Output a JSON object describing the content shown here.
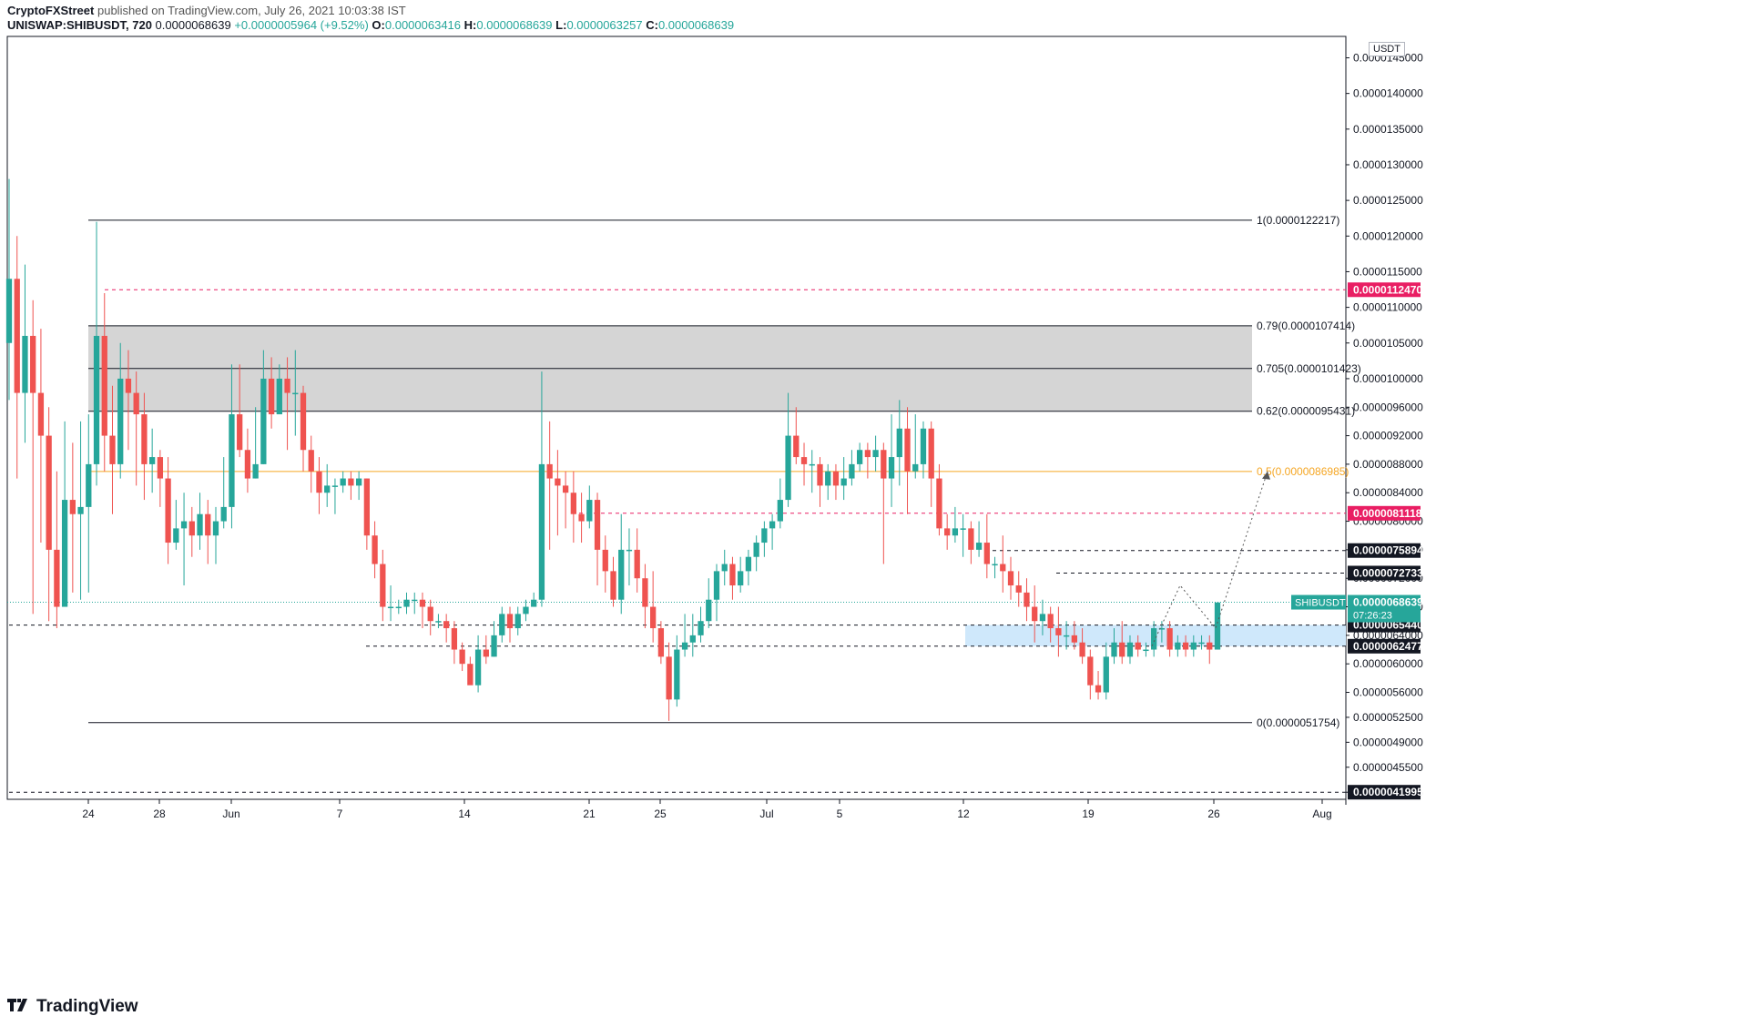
{
  "header": {
    "publisher": "CryptoFXStreet",
    "published_text": "published on TradingView.com, July 26, 2021 10:03:38 IST",
    "symbol": "UNISWAP:SHIBUSDT, 720",
    "last": "0.0000068639",
    "change": "+0.0000005964 (+9.52%)",
    "o_label": "O:",
    "o": "0.0000063416",
    "h_label": "H:",
    "h": "0.0000068639",
    "l_label": "L:",
    "l": "0.0000063257",
    "c_label": "C:",
    "c": "0.0000068639"
  },
  "footer": {
    "brand": "TradingView",
    "logo_icon": "tradingview-logo-icon"
  },
  "colors": {
    "up": "#26a69a",
    "down": "#ef5350",
    "red_line": "#e91e63",
    "orange_line": "#f5a623",
    "zone_gray": "#d3d3d3",
    "zone_blue": "#cfe8fb"
  },
  "chart_data": {
    "type": "candlestick",
    "currency": "USDT",
    "x_ticks": [
      "24",
      "28",
      "Jun",
      "7",
      "14",
      "21",
      "25",
      "Jul",
      "5",
      "12",
      "19",
      "26",
      "Aug"
    ],
    "y_ticks": [
      "0.0000145000",
      "0.0000140000",
      "0.0000135000",
      "0.0000130000",
      "0.0000125000",
      "0.0000120000",
      "0.0000115000",
      "0.0000110000",
      "0.0000105000",
      "0.0000100000",
      "0.0000096000",
      "0.0000092000",
      "0.0000088000",
      "0.0000084000",
      "0.0000080000",
      "0.0000076000",
      "0.0000072000",
      "0.0000068000",
      "0.0000064000",
      "0.0000060000",
      "0.0000056000",
      "0.0000052500",
      "0.0000049000",
      "0.0000045500",
      "0.0000041995"
    ],
    "ylim": [
      4.1e-06,
      1.48e-05
    ],
    "fib_levels": [
      {
        "label": "1(0.0000122217)",
        "value": 1.22217e-05
      },
      {
        "label": "0.79(0.0000107414)",
        "value": 1.07414e-05
      },
      {
        "label": "0.705(0.0000101423)",
        "value": 1.01423e-05
      },
      {
        "label": "0.62(0.0000095431)",
        "value": 9.5431e-06
      },
      {
        "label": "0.5(0.0000086985)",
        "value": 8.6985e-06
      },
      {
        "label": "0(0.0000051754)",
        "value": 5.1754e-06
      }
    ],
    "price_labels": [
      {
        "text": "0.0000112470",
        "value": 1.1247e-05,
        "style": "red"
      },
      {
        "text": "0.0000081118",
        "value": 8.1118e-06,
        "style": "red"
      },
      {
        "text": "0.0000075894",
        "value": 7.5894e-06,
        "style": "black"
      },
      {
        "text": "0.0000072733",
        "value": 7.2733e-06,
        "style": "black"
      },
      {
        "text": "0.0000065440",
        "value": 6.544e-06,
        "style": "black"
      },
      {
        "text": "0.0000062477",
        "value": 6.2477e-06,
        "style": "black"
      },
      {
        "text": "0.0000041995",
        "value": 4.1995e-06,
        "style": "black"
      }
    ],
    "last_price": {
      "symbol": "SHIBUSDT",
      "text": "0.0000068639",
      "countdown": "07:26:23",
      "value": 6.8639e-06
    },
    "candles": [
      [
        10.5,
        11.4,
        12.8,
        9.7
      ],
      [
        11.4,
        9.8,
        12.0,
        8.6
      ],
      [
        9.8,
        10.6,
        11.6,
        9.1
      ],
      [
        10.6,
        9.8,
        11.1,
        6.7
      ],
      [
        9.8,
        9.2,
        10.7,
        7.7
      ],
      [
        9.2,
        7.6,
        9.6,
        6.6
      ],
      [
        7.6,
        6.8,
        8.7,
        6.5
      ],
      [
        6.8,
        8.3,
        9.4,
        6.8
      ],
      [
        8.3,
        8.1,
        9.1,
        7.0
      ],
      [
        8.1,
        8.2,
        9.4,
        6.9
      ],
      [
        8.2,
        8.8,
        9.5,
        7.0
      ],
      [
        8.8,
        10.6,
        12.2,
        8.5
      ],
      [
        10.6,
        9.2,
        11.2,
        8.7
      ],
      [
        9.2,
        8.8,
        9.9,
        8.1
      ],
      [
        8.8,
        10.0,
        10.5,
        8.6
      ],
      [
        10.0,
        9.8,
        10.4,
        9.0
      ],
      [
        9.8,
        9.5,
        10.1,
        8.5
      ],
      [
        9.5,
        8.8,
        9.8,
        8.3
      ],
      [
        8.8,
        8.9,
        9.3,
        8.4
      ],
      [
        8.9,
        8.6,
        9.0,
        8.2
      ],
      [
        8.6,
        7.7,
        8.9,
        7.4
      ],
      [
        7.7,
        7.9,
        8.3,
        7.6
      ],
      [
        7.9,
        8.0,
        8.4,
        7.1
      ],
      [
        8.0,
        7.8,
        8.2,
        7.5
      ],
      [
        7.8,
        8.1,
        8.4,
        7.6
      ],
      [
        8.1,
        7.8,
        8.3,
        7.4
      ],
      [
        7.8,
        8.0,
        8.2,
        7.4
      ],
      [
        8.0,
        8.2,
        8.9,
        7.9
      ],
      [
        8.2,
        9.5,
        10.2,
        7.9
      ],
      [
        9.5,
        9.0,
        10.2,
        8.9
      ],
      [
        9.0,
        8.6,
        9.3,
        8.4
      ],
      [
        8.6,
        8.8,
        9.6,
        8.6
      ],
      [
        8.8,
        10.0,
        10.4,
        8.8
      ],
      [
        10.0,
        9.5,
        10.3,
        9.3
      ],
      [
        9.5,
        10.0,
        10.2,
        9.6
      ],
      [
        10.0,
        9.8,
        10.3,
        9.0
      ],
      [
        9.8,
        9.8,
        10.4,
        9.2
      ],
      [
        9.8,
        9.0,
        9.9,
        8.7
      ],
      [
        9.0,
        8.7,
        9.2,
        8.4
      ],
      [
        8.7,
        8.4,
        8.9,
        8.1
      ],
      [
        8.4,
        8.5,
        8.8,
        8.2
      ],
      [
        8.5,
        8.5,
        8.6,
        8.1
      ],
      [
        8.5,
        8.6,
        8.7,
        8.4
      ],
      [
        8.6,
        8.5,
        8.7,
        8.3
      ],
      [
        8.5,
        8.6,
        8.7,
        8.3
      ],
      [
        8.6,
        7.8,
        8.6,
        7.6
      ],
      [
        7.8,
        7.4,
        8.0,
        7.2
      ],
      [
        7.4,
        6.8,
        7.6,
        6.6
      ],
      [
        6.8,
        6.8,
        7.1,
        6.6
      ],
      [
        6.8,
        6.8,
        6.9,
        6.7
      ],
      [
        6.8,
        6.9,
        7.0,
        6.7
      ],
      [
        6.9,
        6.9,
        7.0,
        6.7
      ],
      [
        6.9,
        6.8,
        7.0,
        6.5
      ],
      [
        6.8,
        6.6,
        6.9,
        6.4
      ],
      [
        6.6,
        6.6,
        6.7,
        6.5
      ],
      [
        6.6,
        6.5,
        6.7,
        6.3
      ],
      [
        6.5,
        6.2,
        6.6,
        6.0
      ],
      [
        6.2,
        6.0,
        6.3,
        5.9
      ],
      [
        6.0,
        5.7,
        6.1,
        5.8
      ],
      [
        5.7,
        6.2,
        6.4,
        5.6
      ],
      [
        6.2,
        6.1,
        6.4,
        6.0
      ],
      [
        6.1,
        6.4,
        6.6,
        6.1
      ],
      [
        6.4,
        6.7,
        6.8,
        6.3
      ],
      [
        6.7,
        6.5,
        6.8,
        6.3
      ],
      [
        6.5,
        6.7,
        6.8,
        6.4
      ],
      [
        6.7,
        6.8,
        6.9,
        6.6
      ],
      [
        6.8,
        6.9,
        7.0,
        6.8
      ],
      [
        6.9,
        8.8,
        10.1,
        6.8
      ],
      [
        8.8,
        8.6,
        9.4,
        7.6
      ],
      [
        8.6,
        8.5,
        9.0,
        7.8
      ],
      [
        8.5,
        8.4,
        8.7,
        7.9
      ],
      [
        8.4,
        8.1,
        8.7,
        7.7
      ],
      [
        8.1,
        8.0,
        8.4,
        7.7
      ],
      [
        8.0,
        8.3,
        8.5,
        7.9
      ],
      [
        8.3,
        7.6,
        8.4,
        7.1
      ],
      [
        7.6,
        7.3,
        7.8,
        7.0
      ],
      [
        7.3,
        6.9,
        7.5,
        6.8
      ],
      [
        6.9,
        7.6,
        8.1,
        6.7
      ],
      [
        7.6,
        7.6,
        7.9,
        7.1
      ],
      [
        7.6,
        7.2,
        7.9,
        7.0
      ],
      [
        7.2,
        6.8,
        7.4,
        6.5
      ],
      [
        6.8,
        6.5,
        7.3,
        6.3
      ],
      [
        6.5,
        6.1,
        6.6,
        6.0
      ],
      [
        6.1,
        5.5,
        6.3,
        5.2
      ],
      [
        5.5,
        6.2,
        6.4,
        5.4
      ],
      [
        6.2,
        6.3,
        6.7,
        6.1
      ],
      [
        6.3,
        6.4,
        6.7,
        6.1
      ],
      [
        6.4,
        6.6,
        6.8,
        6.3
      ],
      [
        6.6,
        6.9,
        7.2,
        6.5
      ],
      [
        6.9,
        7.3,
        7.4,
        6.6
      ],
      [
        7.3,
        7.4,
        7.6,
        7.1
      ],
      [
        7.4,
        7.1,
        7.5,
        6.9
      ],
      [
        7.1,
        7.3,
        7.5,
        7.0
      ],
      [
        7.3,
        7.5,
        7.6,
        7.1
      ],
      [
        7.5,
        7.7,
        7.8,
        7.3
      ],
      [
        7.7,
        7.9,
        8.0,
        7.5
      ],
      [
        7.9,
        8.0,
        8.1,
        7.6
      ],
      [
        8.0,
        8.3,
        8.6,
        7.9
      ],
      [
        8.3,
        9.2,
        9.8,
        8.2
      ],
      [
        9.2,
        8.9,
        9.6,
        8.8
      ],
      [
        8.9,
        8.8,
        9.1,
        8.5
      ],
      [
        8.8,
        8.8,
        9.0,
        8.4
      ],
      [
        8.8,
        8.5,
        8.9,
        8.2
      ],
      [
        8.5,
        8.7,
        8.8,
        8.3
      ],
      [
        8.7,
        8.5,
        8.8,
        8.3
      ],
      [
        8.5,
        8.6,
        8.9,
        8.3
      ],
      [
        8.6,
        8.8,
        9.0,
        8.5
      ],
      [
        8.8,
        9.0,
        9.1,
        8.7
      ],
      [
        9.0,
        8.9,
        9.1,
        8.6
      ],
      [
        8.9,
        9.0,
        9.2,
        8.7
      ],
      [
        9.0,
        8.6,
        9.1,
        7.4
      ],
      [
        8.6,
        8.9,
        9.5,
        8.2
      ],
      [
        8.9,
        9.3,
        9.7,
        8.5
      ],
      [
        9.3,
        8.7,
        9.6,
        8.1
      ],
      [
        8.7,
        8.8,
        9.5,
        8.6
      ],
      [
        8.8,
        9.3,
        9.4,
        8.6
      ],
      [
        9.3,
        8.6,
        9.4,
        8.2
      ],
      [
        8.6,
        7.9,
        8.8,
        7.8
      ],
      [
        7.9,
        7.8,
        8.1,
        7.6
      ],
      [
        7.8,
        7.9,
        8.2,
        7.7
      ],
      [
        7.9,
        7.9,
        8.1,
        7.5
      ],
      [
        7.9,
        7.6,
        8.0,
        7.4
      ],
      [
        7.6,
        7.7,
        8.0,
        7.5
      ],
      [
        7.7,
        7.4,
        8.1,
        7.2
      ],
      [
        7.4,
        7.4,
        7.5,
        7.2
      ],
      [
        7.4,
        7.3,
        7.8,
        7.0
      ],
      [
        7.3,
        7.1,
        7.5,
        6.9
      ],
      [
        7.1,
        7.0,
        7.3,
        6.8
      ],
      [
        7.0,
        6.8,
        7.2,
        6.6
      ],
      [
        6.8,
        6.6,
        7.1,
        6.3
      ],
      [
        6.6,
        6.7,
        6.9,
        6.4
      ],
      [
        6.7,
        6.5,
        6.8,
        6.3
      ],
      [
        6.5,
        6.4,
        6.8,
        6.1
      ],
      [
        6.4,
        6.4,
        6.6,
        6.2
      ],
      [
        6.4,
        6.3,
        6.6,
        6.2
      ],
      [
        6.3,
        6.1,
        6.5,
        6.0
      ],
      [
        6.1,
        5.7,
        6.2,
        5.5
      ],
      [
        5.7,
        5.6,
        5.9,
        5.5
      ],
      [
        5.6,
        6.1,
        6.3,
        5.5
      ],
      [
        6.1,
        6.3,
        6.5,
        6.0
      ],
      [
        6.3,
        6.1,
        6.6,
        6.0
      ],
      [
        6.1,
        6.3,
        6.4,
        6.0
      ],
      [
        6.3,
        6.2,
        6.4,
        6.1
      ],
      [
        6.2,
        6.2,
        6.3,
        6.1
      ],
      [
        6.2,
        6.5,
        6.6,
        6.1
      ],
      [
        6.5,
        6.5,
        6.6,
        6.3
      ],
      [
        6.5,
        6.2,
        6.6,
        6.1
      ],
      [
        6.2,
        6.3,
        6.4,
        6.1
      ],
      [
        6.3,
        6.2,
        6.4,
        6.1
      ],
      [
        6.2,
        6.3,
        6.4,
        6.1
      ],
      [
        6.3,
        6.3,
        6.4,
        6.2
      ],
      [
        6.3,
        6.2,
        6.4,
        6.0
      ],
      [
        6.2,
        6.86,
        6.86,
        6.2
      ]
    ]
  }
}
